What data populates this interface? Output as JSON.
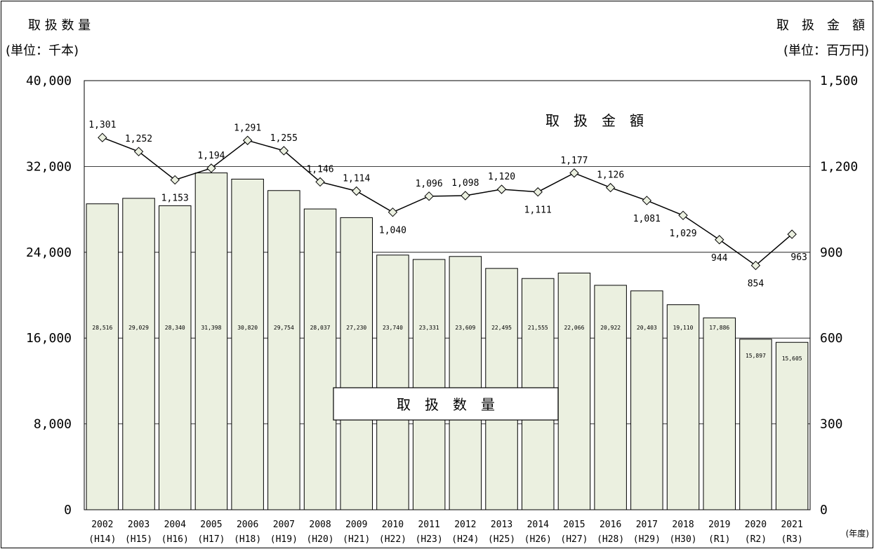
{
  "chart_data": {
    "type": "bar+line",
    "categories": [
      "2002",
      "2003",
      "2004",
      "2005",
      "2006",
      "2007",
      "2008",
      "2009",
      "2010",
      "2011",
      "2012",
      "2013",
      "2014",
      "2015",
      "2016",
      "2017",
      "2018",
      "2019",
      "2020",
      "2021"
    ],
    "categories_sub": [
      "(H14)",
      "(H15)",
      "(H16)",
      "(H17)",
      "(H18)",
      "(H19)",
      "(H20)",
      "(H21)",
      "(H22)",
      "(H23)",
      "(H24)",
      "(H25)",
      "(H26)",
      "(H27)",
      "(H28)",
      "(H29)",
      "(H30)",
      "(R1)",
      "(R2)",
      "(R3)"
    ],
    "x_unit": "(年度)",
    "left_axis": {
      "title": "取 扱 数 量",
      "unit": "(単位：千本)",
      "range": [
        0,
        40000
      ],
      "ticks": [
        "0",
        "8,000",
        "16,000",
        "24,000",
        "32,000",
        "40,000"
      ]
    },
    "right_axis": {
      "title": "取　扱　金　額",
      "unit": "(単位：百万円)",
      "range": [
        0,
        1500
      ],
      "ticks": [
        "0",
        "300",
        "600",
        "900",
        "1,200",
        "1,500"
      ]
    },
    "series": [
      {
        "name": "取　扱　数　量",
        "type": "bar",
        "axis": "left",
        "color": "#ebf0e0",
        "values": [
          28516,
          29029,
          28340,
          31398,
          30820,
          29754,
          28037,
          27230,
          23740,
          23331,
          23609,
          22495,
          21555,
          22066,
          20922,
          20403,
          19110,
          17886,
          15897,
          15605
        ],
        "labels": [
          "28,516",
          "29,029",
          "28,340",
          "31,398",
          "30,820",
          "29,754",
          "28,037",
          "27,230",
          "23,740",
          "23,331",
          "23,609",
          "22,495",
          "21,555",
          "22,066",
          "20,922",
          "20,403",
          "19,110",
          "17,886",
          "15,897",
          "15,605"
        ]
      },
      {
        "name": "取　扱　金　額",
        "type": "line",
        "axis": "right",
        "marker": "diamond",
        "color": "#000000",
        "values": [
          1301,
          1252,
          1153,
          1194,
          1291,
          1255,
          1146,
          1114,
          1040,
          1096,
          1098,
          1120,
          1111,
          1177,
          1126,
          1081,
          1029,
          944,
          854,
          963
        ],
        "labels": [
          "1,301",
          "1,252",
          "1,153",
          "1,194",
          "1,291",
          "1,255",
          "1,146",
          "1,114",
          "1,040",
          "1,096",
          "1,098",
          "1,120",
          "1,111",
          "1,177",
          "1,126",
          "1,081",
          "1,029",
          "944",
          "854",
          "963"
        ]
      }
    ],
    "grid": true
  }
}
